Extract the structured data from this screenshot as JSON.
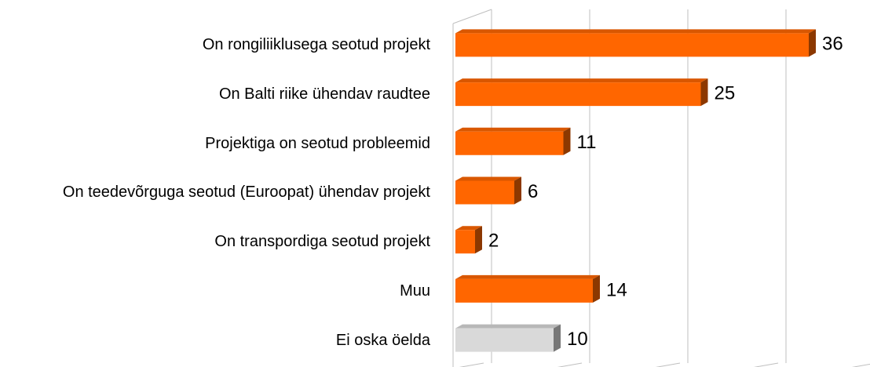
{
  "chart_data": {
    "type": "bar3d_horizontal",
    "categories": [
      "On rongiliiklusega seotud projekt",
      "On Balti riike ühendav raudtee",
      "Projektiga on seotud probleemid",
      "On teedevõrguga seotud (Euroopat) ühendav projekt",
      "On transpordiga seotud projekt",
      "Muu",
      "Ei oska öelda"
    ],
    "values": [
      36,
      25,
      11,
      6,
      2,
      14,
      10
    ],
    "colors": [
      "#ff6600",
      "#ff6600",
      "#ff6600",
      "#ff6600",
      "#ff6600",
      "#ff6600",
      "#d9d9d9"
    ],
    "xlim": [
      0,
      40
    ],
    "xticks": [
      0,
      10,
      20,
      30,
      40
    ],
    "grid": true
  }
}
